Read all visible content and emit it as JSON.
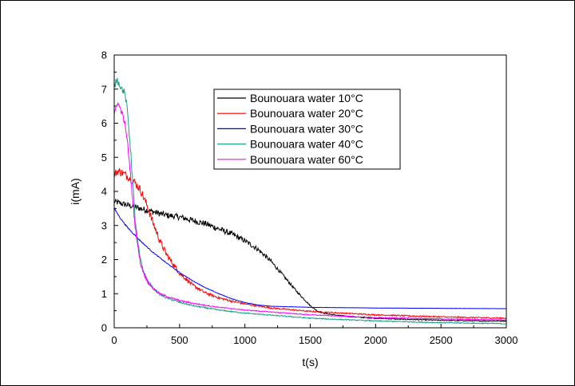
{
  "chart_data": {
    "type": "line",
    "title": "",
    "xlabel": "t(s)",
    "ylabel": "i(mA)",
    "xlim": [
      0,
      3000
    ],
    "ylim": [
      0,
      8
    ],
    "xticks": [
      0,
      500,
      1000,
      1500,
      2000,
      2500,
      3000
    ],
    "yticks": [
      0,
      1,
      2,
      3,
      4,
      5,
      6,
      7,
      8
    ],
    "grid": false,
    "legend_position": "top-center",
    "series": [
      {
        "name": "Bounouara water 10°C",
        "color": "#000000",
        "noise": 0.09,
        "x": [
          0,
          50,
          100,
          150,
          200,
          300,
          400,
          500,
          600,
          700,
          800,
          900,
          1000,
          1100,
          1200,
          1300,
          1400,
          1500,
          1550,
          1600,
          1700,
          1800,
          1900,
          2000,
          2200,
          2500,
          2800,
          3000
        ],
        "y": [
          3.7,
          3.65,
          3.6,
          3.55,
          3.5,
          3.4,
          3.3,
          3.25,
          3.15,
          3.05,
          2.9,
          2.75,
          2.55,
          2.3,
          1.95,
          1.5,
          1.05,
          0.65,
          0.5,
          0.43,
          0.37,
          0.33,
          0.3,
          0.28,
          0.25,
          0.22,
          0.2,
          0.2
        ]
      },
      {
        "name": "Bounouara water 20°C",
        "color": "#ff0000",
        "noise": 0.12,
        "x": [
          0,
          30,
          60,
          100,
          150,
          200,
          250,
          300,
          350,
          400,
          500,
          600,
          700,
          800,
          900,
          1000,
          1200,
          1500,
          2000,
          2500,
          3000
        ],
        "y": [
          4.5,
          4.6,
          4.55,
          4.45,
          4.3,
          4.05,
          3.6,
          3.05,
          2.55,
          2.15,
          1.6,
          1.25,
          1.02,
          0.88,
          0.78,
          0.7,
          0.58,
          0.48,
          0.38,
          0.32,
          0.28
        ]
      },
      {
        "name": "Bounouara water 30°C",
        "color": "#0000ff",
        "noise": 0.02,
        "x": [
          0,
          50,
          100,
          200,
          300,
          400,
          500,
          600,
          700,
          800,
          900,
          1000,
          1100,
          1200,
          1500,
          2000,
          2500,
          3000
        ],
        "y": [
          3.5,
          3.2,
          2.95,
          2.55,
          2.2,
          1.9,
          1.62,
          1.38,
          1.17,
          1.0,
          0.85,
          0.74,
          0.67,
          0.63,
          0.6,
          0.58,
          0.57,
          0.56
        ]
      },
      {
        "name": "Bounouara water 40°C",
        "color": "#1e9e86",
        "noise": 0.1,
        "x": [
          0,
          20,
          40,
          60,
          80,
          100,
          120,
          140,
          160,
          180,
          200,
          230,
          260,
          300,
          350,
          400,
          500,
          600,
          800,
          1000,
          1500,
          2000,
          2500,
          3000
        ],
        "y": [
          7.05,
          7.3,
          7.15,
          7.0,
          6.9,
          6.4,
          5.5,
          4.4,
          3.2,
          2.5,
          2.0,
          1.6,
          1.35,
          1.15,
          0.98,
          0.88,
          0.75,
          0.65,
          0.52,
          0.43,
          0.28,
          0.2,
          0.15,
          0.12
        ]
      },
      {
        "name": "Bounouara water 60°C",
        "color": "#ff00ff",
        "noise": 0.08,
        "x": [
          0,
          20,
          40,
          60,
          80,
          100,
          120,
          140,
          160,
          180,
          200,
          230,
          260,
          300,
          350,
          400,
          500,
          600,
          800,
          1000,
          1500,
          2000,
          2500,
          3000
        ],
        "y": [
          6.2,
          6.6,
          6.5,
          6.3,
          6.0,
          5.5,
          4.7,
          3.8,
          3.0,
          2.4,
          1.9,
          1.55,
          1.32,
          1.15,
          1.0,
          0.92,
          0.8,
          0.72,
          0.6,
          0.52,
          0.38,
          0.3,
          0.26,
          0.23
        ]
      }
    ]
  }
}
